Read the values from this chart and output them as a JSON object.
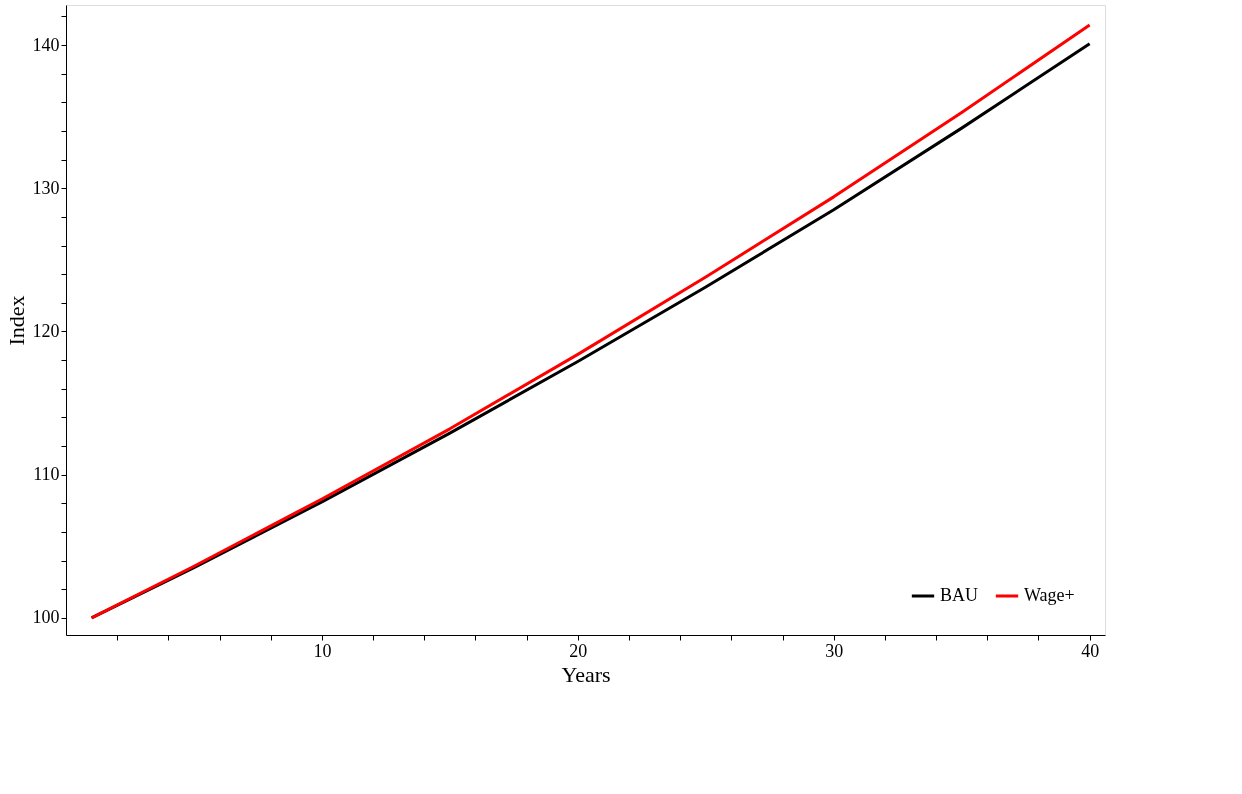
{
  "chart_data": {
    "type": "line",
    "xlabel": "Years",
    "ylabel": "Index",
    "x": [
      1,
      5,
      10,
      15,
      20,
      25,
      30,
      35,
      40
    ],
    "series": [
      {
        "name": "BAU",
        "color": "#000000",
        "values": [
          100,
          103.5,
          108.1,
          112.9,
          117.9,
          123.1,
          128.5,
          134.2,
          140.1
        ]
      },
      {
        "name": "Wage+",
        "color": "#ff0000",
        "values": [
          100,
          103.6,
          108.3,
          113.2,
          118.4,
          123.8,
          129.4,
          135.3,
          141.4
        ]
      }
    ],
    "xlim": [
      0,
      40.6
    ],
    "ylim": [
      98.8,
      142.8
    ],
    "xticks": [
      {
        "value": 2,
        "label": null
      },
      {
        "value": 4,
        "label": null
      },
      {
        "value": 6,
        "label": null
      },
      {
        "value": 8,
        "label": null
      },
      10,
      {
        "value": 12,
        "label": null
      },
      {
        "value": 14,
        "label": null
      },
      {
        "value": 16,
        "label": null
      },
      {
        "value": 18,
        "label": null
      },
      20,
      {
        "value": 22,
        "label": null
      },
      {
        "value": 24,
        "label": null
      },
      {
        "value": 26,
        "label": null
      },
      {
        "value": 28,
        "label": null
      },
      30,
      {
        "value": 32,
        "label": null
      },
      {
        "value": 34,
        "label": null
      },
      {
        "value": 36,
        "label": null
      },
      {
        "value": 38,
        "label": null
      },
      40
    ],
    "yticks": [
      100,
      {
        "value": 102,
        "label": null
      },
      {
        "value": 104,
        "label": null
      },
      {
        "value": 106,
        "label": null
      },
      {
        "value": 108,
        "label": null
      },
      110,
      {
        "value": 112,
        "label": null
      },
      {
        "value": 114,
        "label": null
      },
      {
        "value": 116,
        "label": null
      },
      {
        "value": 118,
        "label": null
      },
      120,
      {
        "value": 122,
        "label": null
      },
      {
        "value": 124,
        "label": null
      },
      {
        "value": 126,
        "label": null
      },
      {
        "value": 128,
        "label": null
      },
      130,
      {
        "value": 132,
        "label": null
      },
      {
        "value": 134,
        "label": null
      },
      {
        "value": 136,
        "label": null
      },
      {
        "value": 138,
        "label": null
      },
      140,
      {
        "value": 142,
        "label": null
      }
    ],
    "grid": false,
    "legend": "bottom right",
    "marker": "none",
    "line_style": "solid"
  }
}
